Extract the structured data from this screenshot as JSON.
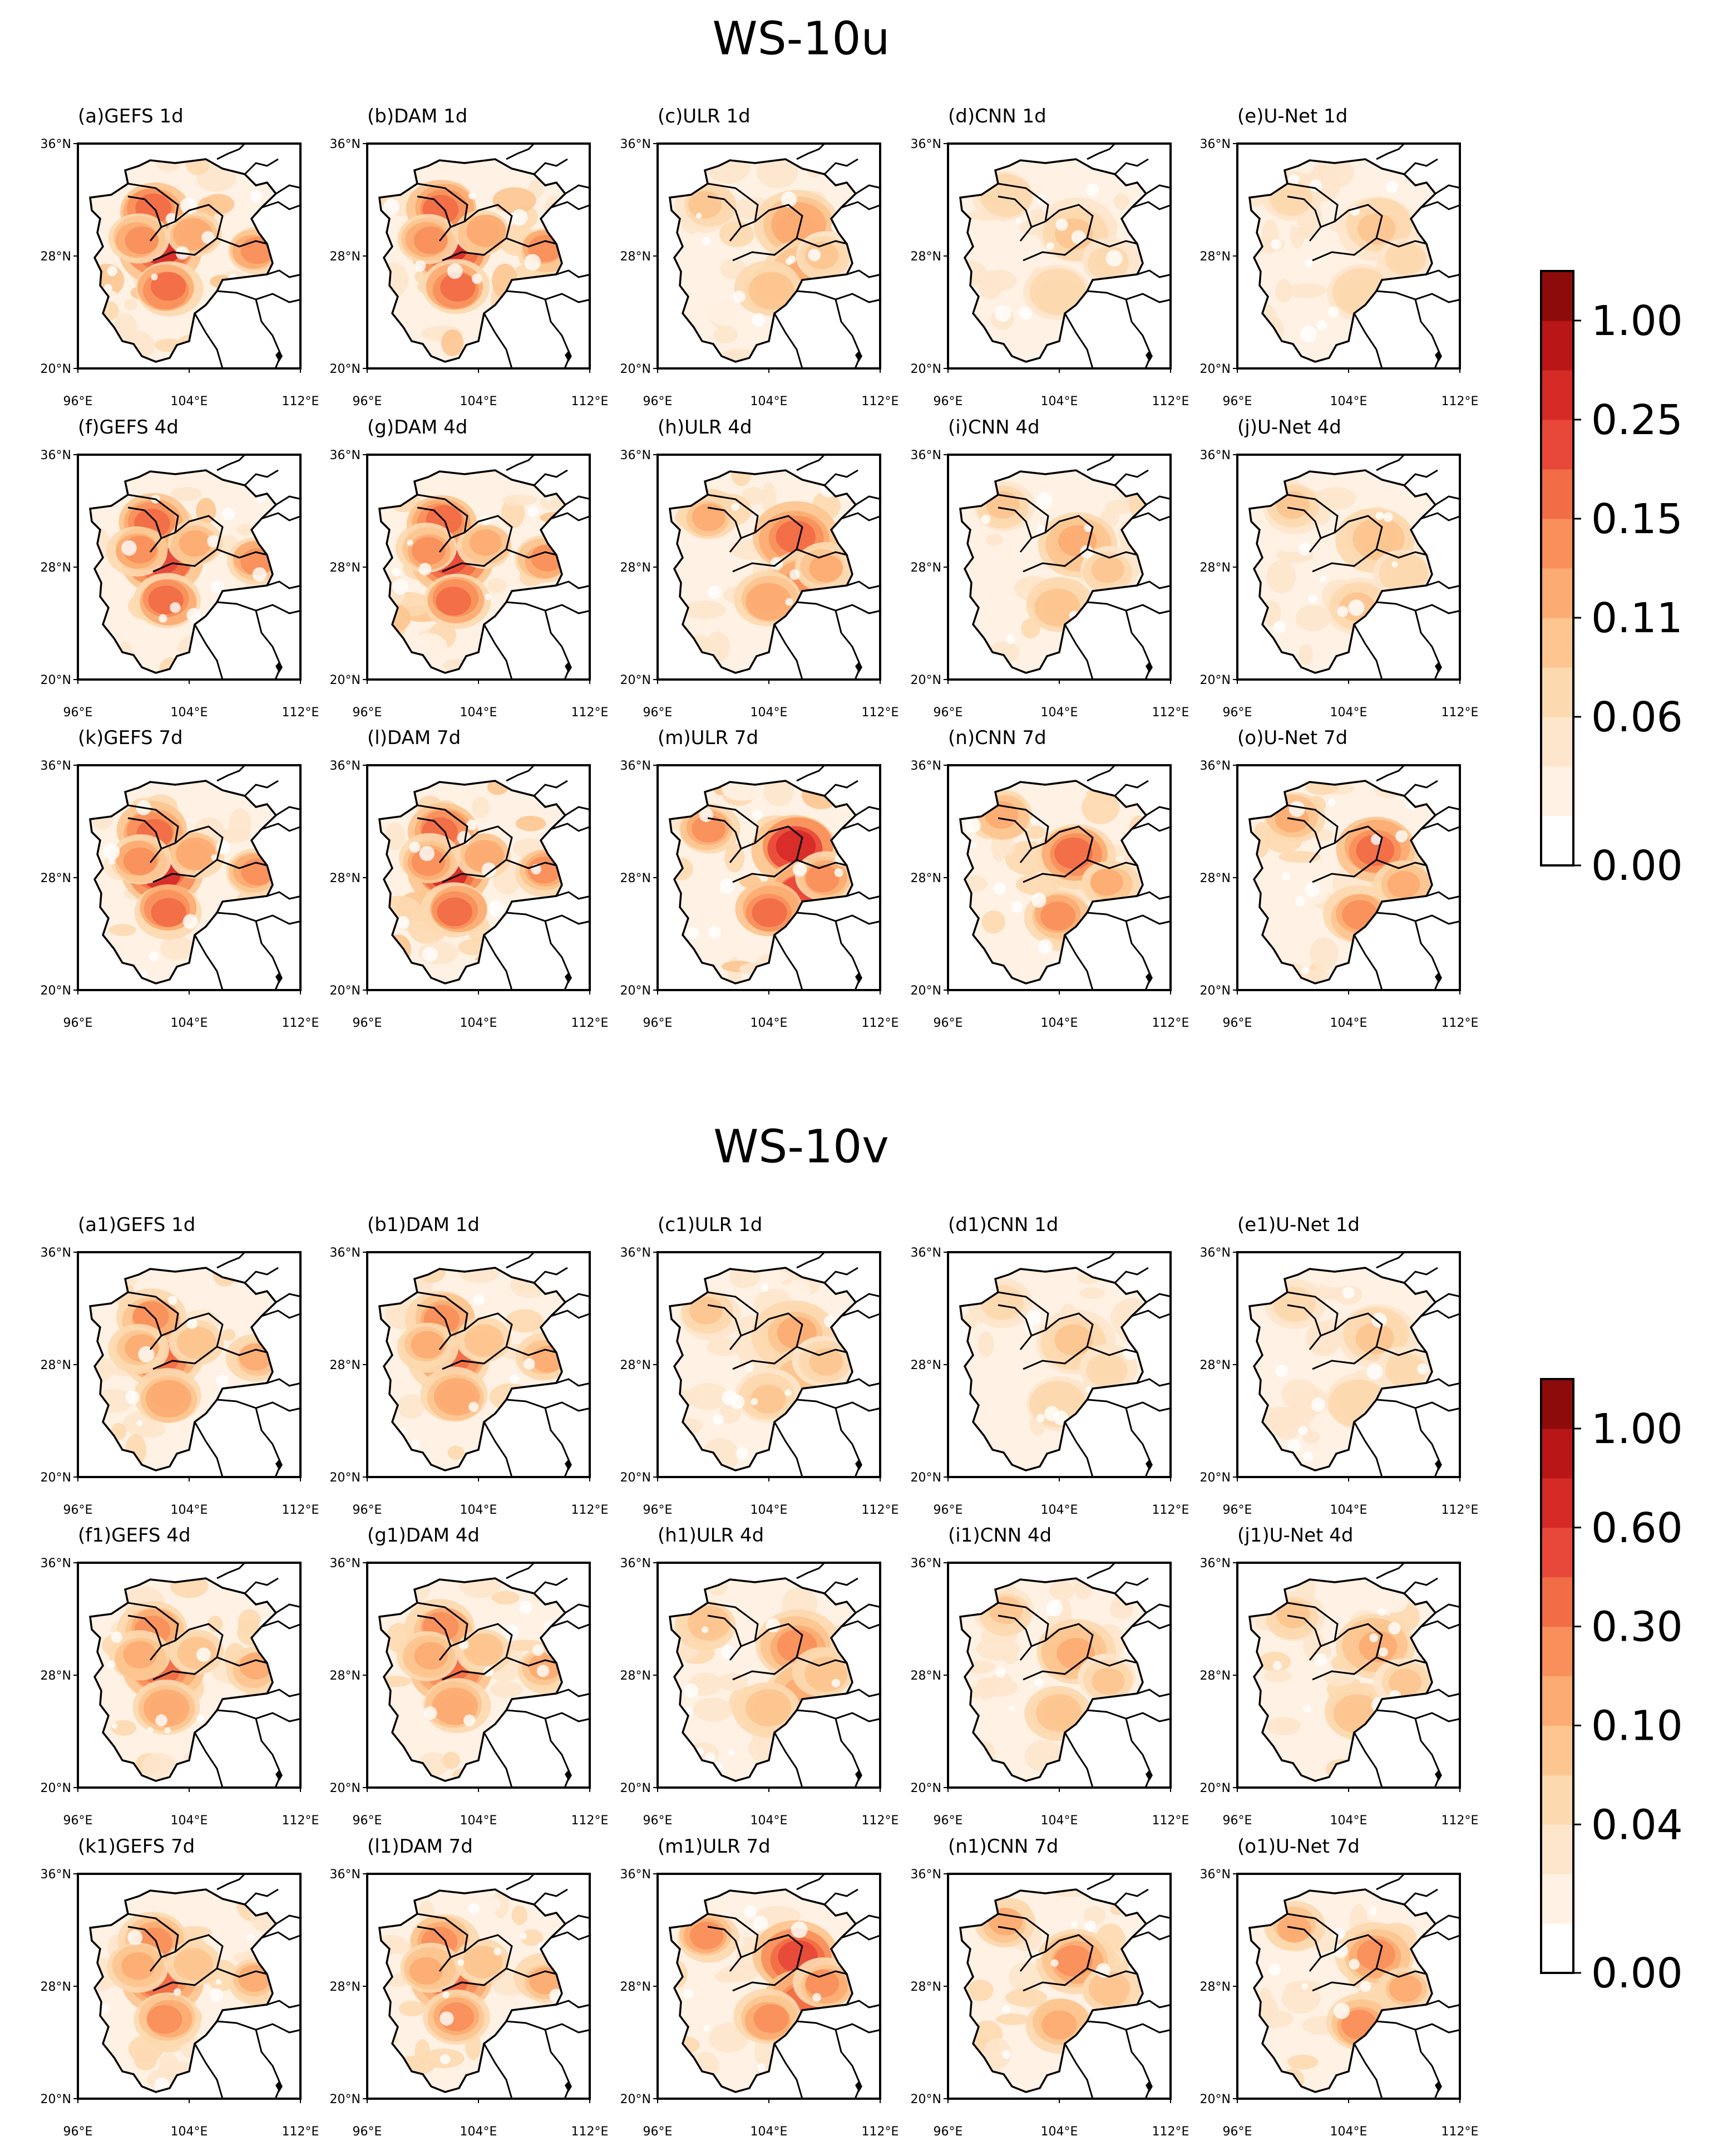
{
  "figure": {
    "sections": [
      {
        "id": "u",
        "title": "WS-10u",
        "rows": [
          [
            "(a)GEFS 1d",
            "(b)DAM 1d",
            "(c)ULR 1d",
            "(d)CNN 1d",
            "(e)U-Net 1d"
          ],
          [
            "(f)GEFS 4d",
            "(g)DAM 4d",
            "(h)ULR 4d",
            "(i)CNN 4d",
            "(j)U-Net 4d"
          ],
          [
            "(k)GEFS 7d",
            "(l)DAM 7d",
            "(m)ULR 7d",
            "(n)CNN 7d",
            "(o)U-Net 7d"
          ]
        ],
        "intensity": [
          [
            0.8,
            0.8,
            0.42,
            0.28,
            0.24
          ],
          [
            0.78,
            0.78,
            0.58,
            0.4,
            0.34
          ],
          [
            0.8,
            0.8,
            0.82,
            0.62,
            0.66
          ]
        ],
        "colorbar": {
          "labels": [
            "1.00",
            "0.25",
            "0.15",
            "0.11",
            "0.06",
            "0.00"
          ]
        }
      },
      {
        "id": "v",
        "title": "WS-10v",
        "rows": [
          [
            "(a1)GEFS 1d",
            "(b1)DAM 1d",
            "(c1)ULR 1d",
            "(d1)CNN 1d",
            "(e1)U-Net 1d"
          ],
          [
            "(f1)GEFS 4d",
            "(g1)DAM 4d",
            "(h1)ULR 4d",
            "(i1)CNN 4d",
            "(j1)U-Net 4d"
          ],
          [
            "(k1)GEFS 7d",
            "(l1)DAM 7d",
            "(m1)ULR 7d",
            "(n1)CNN 7d",
            "(o1)U-Net 7d"
          ]
        ],
        "intensity": [
          [
            0.58,
            0.58,
            0.34,
            0.26,
            0.24
          ],
          [
            0.6,
            0.6,
            0.44,
            0.4,
            0.4
          ],
          [
            0.62,
            0.62,
            0.74,
            0.56,
            0.58
          ]
        ],
        "colorbar": {
          "labels": [
            "1.00",
            "0.60",
            "0.30",
            "0.10",
            "0.04",
            "0.00"
          ]
        }
      }
    ],
    "axes": {
      "lat_ticks": [
        "36°N",
        "28°N",
        "20°N"
      ],
      "lon_ticks": [
        "96°E",
        "104°E",
        "112°E"
      ]
    },
    "colormap": [
      "#ffffff",
      "#fff1e3",
      "#fee6cc",
      "#fdd9b0",
      "#fdc590",
      "#fcab72",
      "#f98f5a",
      "#f26c45",
      "#e8483a",
      "#d62a27",
      "#b81617",
      "#8e0b0b"
    ]
  }
}
